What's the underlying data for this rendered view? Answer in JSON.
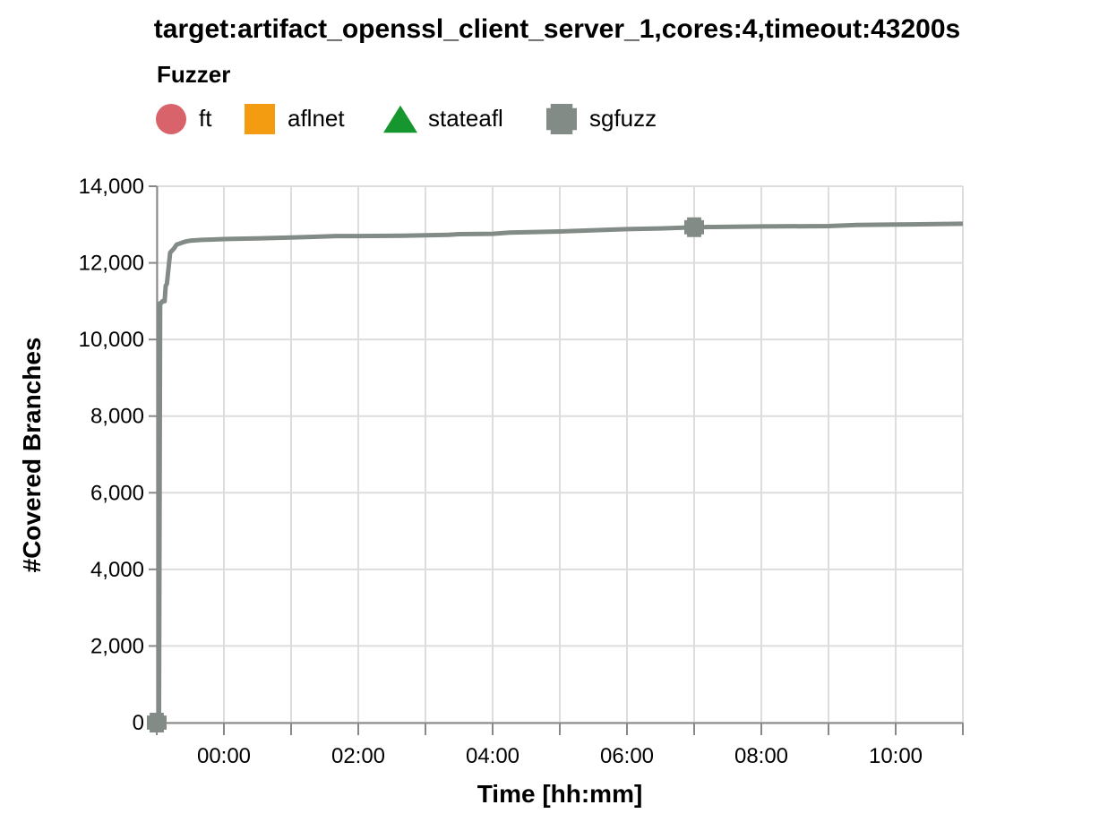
{
  "chart_data": {
    "type": "line",
    "title": "target:artifact_openssl_client_server_1,cores:4,timeout:43200s",
    "xlabel": "Time [hh:mm]",
    "ylabel": "#Covered Branches",
    "legend_title": "Fuzzer",
    "legend_placement": "top-left",
    "grid": true,
    "x_unit": "minutes",
    "xlim": [
      -60,
      660
    ],
    "ylim": [
      0,
      14000
    ],
    "x_ticks": [
      {
        "value": 0,
        "label": "00:00"
      },
      {
        "value": 120,
        "label": "02:00"
      },
      {
        "value": 240,
        "label": "04:00"
      },
      {
        "value": 360,
        "label": "06:00"
      },
      {
        "value": 480,
        "label": "08:00"
      },
      {
        "value": 600,
        "label": "10:00"
      }
    ],
    "y_ticks": [
      {
        "value": 0,
        "label": "0"
      },
      {
        "value": 2000,
        "label": "2,000"
      },
      {
        "value": 4000,
        "label": "4,000"
      },
      {
        "value": 6000,
        "label": "6,000"
      },
      {
        "value": 8000,
        "label": "8,000"
      },
      {
        "value": 10000,
        "label": "10,000"
      },
      {
        "value": 12000,
        "label": "12,000"
      },
      {
        "value": 14000,
        "label": "14,000"
      }
    ],
    "series": [
      {
        "name": "ft",
        "color": "#d9636b",
        "marker": "circle",
        "x": [],
        "y": []
      },
      {
        "name": "aflnet",
        "color": "#f39c12",
        "marker": "square",
        "x": [],
        "y": []
      },
      {
        "name": "stateafl",
        "color": "#15962f",
        "marker": "triangle",
        "x": [],
        "y": []
      },
      {
        "name": "sgfuzz",
        "color": "#828b86",
        "marker": "cross",
        "marker_x": [
          -60,
          420
        ],
        "x": [
          -60,
          -58,
          -57,
          -56,
          -55,
          -53,
          -52,
          -51,
          -48,
          -47,
          -46,
          -44,
          -43,
          -42,
          -40,
          -35,
          -32,
          -30,
          -20,
          -10,
          0,
          30,
          60,
          80,
          100,
          120,
          160,
          180,
          200,
          210,
          240,
          255,
          300,
          320,
          360,
          390,
          420,
          480,
          540,
          565,
          600,
          660
        ],
        "y": [
          0,
          0,
          10950,
          10950,
          11000,
          11000,
          11400,
          11450,
          12270,
          12300,
          12330,
          12400,
          12450,
          12480,
          12500,
          12550,
          12570,
          12580,
          12600,
          12610,
          12620,
          12640,
          12660,
          12680,
          12700,
          12700,
          12710,
          12720,
          12730,
          12750,
          12760,
          12790,
          12820,
          12840,
          12880,
          12900,
          12930,
          12950,
          12960,
          12990,
          13000,
          13020
        ]
      }
    ]
  }
}
